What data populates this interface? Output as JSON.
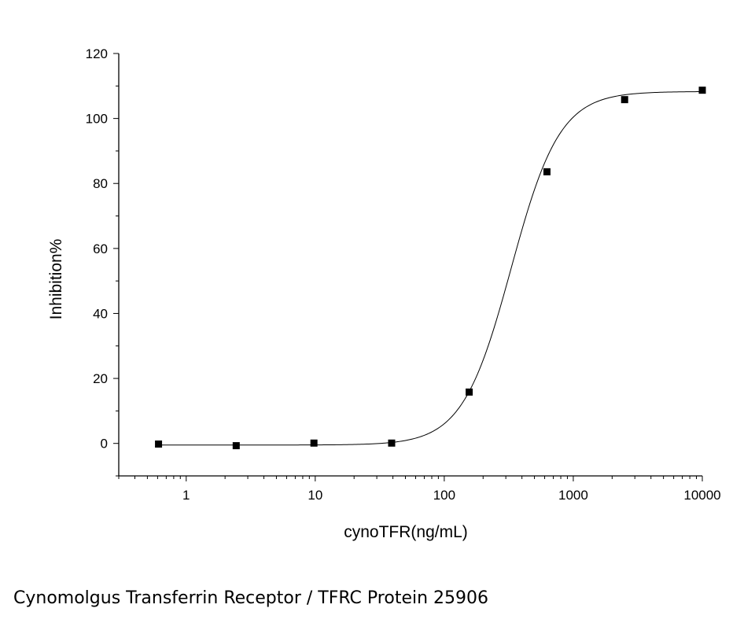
{
  "caption": "Cynomolgus Transferrin Receptor / TFRC Protein 25906",
  "chart_data": {
    "type": "scatter",
    "title": "",
    "xlabel": "cynoTFR(ng/mL)",
    "ylabel": "Inhibition%",
    "x_scale": "log",
    "xlim": [
      0.3,
      10000
    ],
    "ylim": [
      -10,
      120
    ],
    "x_ticks": [
      "1",
      "10",
      "100",
      "1000",
      "10000"
    ],
    "y_ticks": [
      "0",
      "20",
      "40",
      "60",
      "80",
      "100",
      "120"
    ],
    "grid": false,
    "legend": "none",
    "series": [
      {
        "x": [
          0.61,
          2.44,
          9.77,
          39.1,
          156,
          625,
          2500,
          10000
        ],
        "y": [
          -0.2,
          -0.7,
          0.1,
          0.1,
          15.8,
          83.6,
          105.8,
          108.7
        ]
      }
    ],
    "fit_curve": {
      "model": "4PL",
      "bottom": -0.5,
      "top": 108.3,
      "ec50": 330,
      "hill": 2.3
    },
    "colors": {
      "points": "#000000",
      "line": "#000000",
      "axes": "#000000"
    }
  }
}
